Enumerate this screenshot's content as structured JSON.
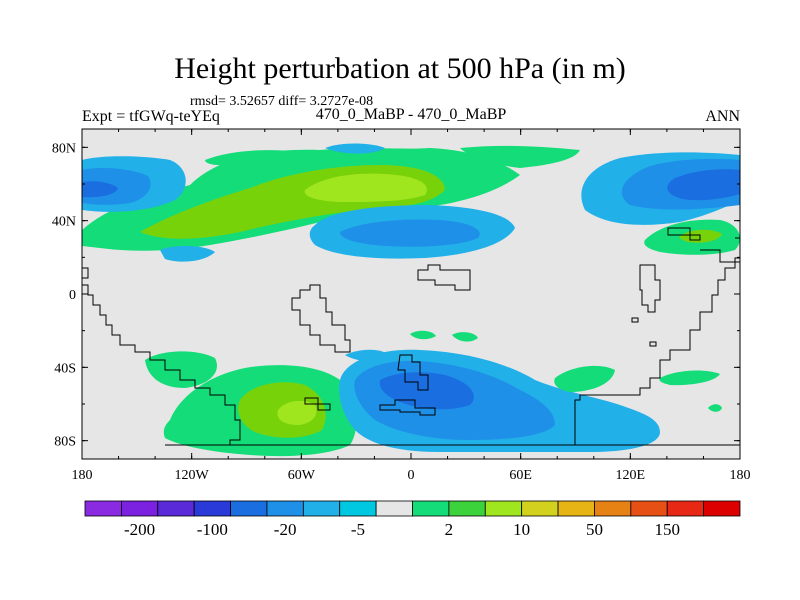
{
  "chart_data": {
    "type": "contour-map",
    "title": "Height perturbation at 500 hPa (in m)",
    "subtitle_stats": "rmsd= 3.52657 diff= 3.2727e-08",
    "left_label": "Expt = tfGWq-teYEq",
    "center_label": "470_0_MaBP - 470_0_MaBP",
    "right_label": "ANN",
    "x_range": [
      -180,
      180
    ],
    "y_range": [
      -90,
      90
    ],
    "x_ticks": [
      {
        "value": -180,
        "label": "180"
      },
      {
        "value": -120,
        "label": "120W"
      },
      {
        "value": -60,
        "label": "60W"
      },
      {
        "value": 0,
        "label": "0"
      },
      {
        "value": 60,
        "label": "60E"
      },
      {
        "value": 120,
        "label": "120E"
      },
      {
        "value": 180,
        "label": "180"
      }
    ],
    "y_ticks": [
      {
        "value": 80,
        "label": "80N"
      },
      {
        "value": 40,
        "label": "40N"
      },
      {
        "value": 0,
        "label": "0"
      },
      {
        "value": -40,
        "label": "40S"
      },
      {
        "value": -80,
        "label": "80S"
      }
    ],
    "colorbar": {
      "colors": [
        "#8a2be2",
        "#7a22e0",
        "#5a2ad8",
        "#2a3ad8",
        "#1a6ee0",
        "#1e90e8",
        "#22b0e8",
        "#00c8e0",
        "#e6e6e6",
        "#14dc78",
        "#3cd23c",
        "#a0e61e",
        "#d2d21e",
        "#e6b414",
        "#e68214",
        "#e65014",
        "#e62814",
        "#dc0000"
      ],
      "labels": [
        "-200",
        "-100",
        "-20",
        "-5",
        "2",
        "10",
        "50",
        "150"
      ]
    },
    "regions": [
      {
        "name": "nh-positive-band",
        "level": "2 to 10",
        "color": "#14dc78"
      },
      {
        "name": "nh-positive-core",
        "level": "10 to 20",
        "color": "#78d20a"
      },
      {
        "name": "nh-positive-max",
        "level": "20 to 50",
        "color": "#a0e61e"
      },
      {
        "name": "nh-pacific-negative",
        "level": "-10 to -20",
        "color": "#1e90e8"
      },
      {
        "name": "nh-atlantic-negative",
        "level": "-2 to -5",
        "color": "#22b0e8"
      },
      {
        "name": "sh-positive",
        "level": "10 to 50",
        "color": "#a0e61e"
      },
      {
        "name": "sh-negative",
        "level": "-10 to -20",
        "color": "#1e90e8"
      }
    ]
  }
}
